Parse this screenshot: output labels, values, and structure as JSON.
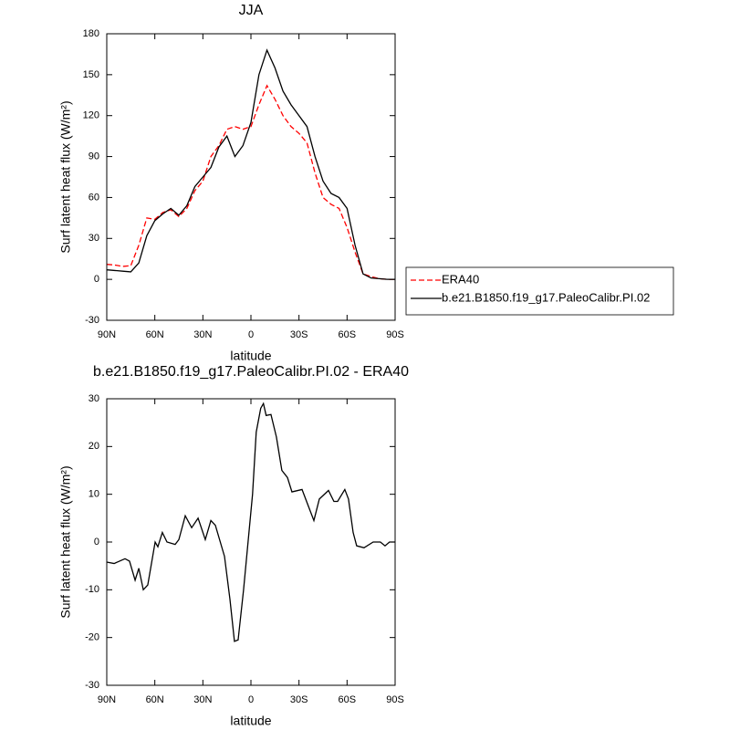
{
  "chart_data": [
    {
      "type": "line",
      "title": "JJA",
      "x_label": "latitude",
      "y_label": "Surf latent heat flux (W/m²)",
      "x": [
        90,
        85,
        80,
        75,
        70,
        65,
        60,
        55,
        50,
        45,
        40,
        35,
        30,
        25,
        20,
        15,
        10,
        5,
        0,
        -5,
        -10,
        -15,
        -20,
        -25,
        -30,
        -35,
        -40,
        -45,
        -50,
        -55,
        -60,
        -65,
        -70,
        -75,
        -80,
        -85,
        -90
      ],
      "series": [
        {
          "name": "ERA40",
          "color": "#ff0000",
          "dash": true,
          "values": [
            11,
            10.5,
            9.5,
            10,
            25,
            45,
            44,
            49,
            51,
            46,
            52,
            65,
            72,
            90,
            98,
            110,
            112,
            110,
            112,
            128,
            142,
            132,
            120,
            112,
            107,
            100,
            78,
            60,
            55,
            52,
            38,
            20,
            4,
            2,
            0.5,
            0,
            0
          ]
        },
        {
          "name": "b.e21.B1850.f19_g17.PaleoCalibr.PI.02",
          "color": "#000000",
          "dash": false,
          "values": [
            7,
            6.5,
            6,
            5.5,
            12,
            32,
            43,
            48,
            52,
            47,
            54,
            68,
            75,
            82,
            97,
            105,
            90,
            98,
            115,
            150,
            168,
            155,
            138,
            128,
            120,
            112,
            90,
            72,
            63,
            60,
            52,
            25,
            4,
            1,
            0.5,
            0,
            0
          ]
        }
      ],
      "xlim": [
        90,
        -90
      ],
      "xticks": [
        {
          "value": 90,
          "label": "90N"
        },
        {
          "value": 60,
          "label": "60N"
        },
        {
          "value": 30,
          "label": "30N"
        },
        0,
        {
          "value": -30,
          "label": "30S"
        },
        {
          "value": -60,
          "label": "60S"
        },
        {
          "value": -90,
          "label": "90S"
        }
      ],
      "ylim": [
        -30,
        180
      ],
      "yticks": [
        -30,
        0,
        30,
        60,
        90,
        120,
        150,
        180
      ],
      "legend": "outside-right"
    },
    {
      "type": "line",
      "title": "b.e21.B1850.f19_g17.PaleoCalibr.PI.02 - ERA40",
      "x_label": "latitude",
      "y_label": "Surf latent heat flux (W/m²)",
      "x": [
        90,
        85.4,
        78.6,
        75.8,
        72.3,
        70,
        67.2,
        64.4,
        59.8,
        58.1,
        55.3,
        52.4,
        47.3,
        45,
        41,
        37,
        33,
        28.5,
        25,
        22.2,
        16.5,
        13.1,
        10.3,
        8,
        4.6,
        -1,
        -3.3,
        -6.1,
        -7.8,
        -9.5,
        -12.5,
        -15.9,
        -19.3,
        -22.8,
        -25.6,
        -31.9,
        -35.3,
        -39.3,
        -42.7,
        -48.4,
        -51.8,
        -54.1,
        -58.6,
        -60.9,
        -63.8,
        -66,
        -70.6,
        -76.3,
        -80.8,
        -83.7,
        -86.5,
        -90
      ],
      "series": [
        {
          "color": "#000000",
          "dash": false,
          "values": [
            -4.2,
            -4.5,
            -3.5,
            -4,
            -8,
            -5.5,
            -10,
            -9,
            0,
            -1,
            2,
            0,
            -0.5,
            0.5,
            5.5,
            3,
            5,
            0.5,
            4.5,
            3.5,
            -3,
            -12,
            -20.8,
            -20.5,
            -10,
            10,
            23,
            28,
            29,
            26.5,
            26.7,
            22,
            15,
            13.5,
            10.5,
            11,
            8,
            4.5,
            9,
            10.8,
            8.5,
            8.5,
            11,
            9,
            2,
            -0.8,
            -1.2,
            0,
            0,
            -0.8,
            0,
            0
          ]
        }
      ],
      "xlim": [
        90,
        -90
      ],
      "xticks": [
        {
          "value": 90,
          "label": "90N"
        },
        {
          "value": 60,
          "label": "60N"
        },
        {
          "value": 30,
          "label": "30N"
        },
        0,
        {
          "value": -30,
          "label": "30S"
        },
        {
          "value": -60,
          "label": "60S"
        },
        {
          "value": -90,
          "label": "90S"
        }
      ],
      "ylim": [
        -30,
        30
      ],
      "yticks": [
        -30,
        -20,
        -10,
        0,
        10,
        20,
        30
      ]
    }
  ]
}
